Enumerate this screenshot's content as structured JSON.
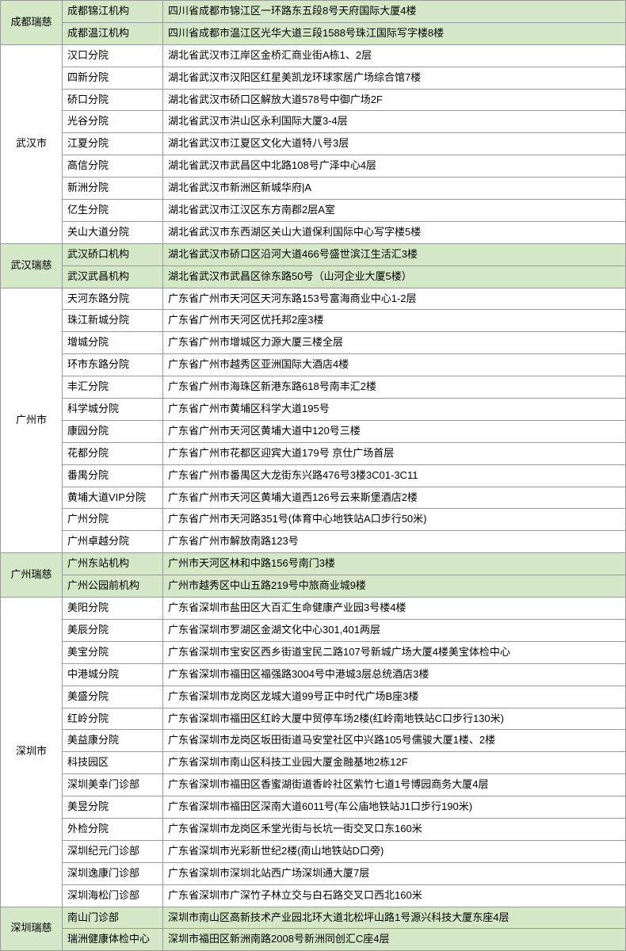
{
  "columns": [
    "city",
    "branch",
    "address"
  ],
  "col_widths": {
    "city": 78,
    "branch": 127
  },
  "colors": {
    "highlight_bg": "#d4e8c8",
    "normal_bg": "#ffffff",
    "border": "#999999",
    "text": "#000000"
  },
  "rows": [
    {
      "city": "成都瑞慈",
      "city_rowspan": 2,
      "branch": "成都锦江机构",
      "address": "四川省成都市锦江区一环路东五段8号天府国际大厦4楼",
      "highlight": true
    },
    {
      "branch": "成都温江机构",
      "address": "四川省成都市温江区光华大道三段1588号珠江国际写字楼8楼",
      "highlight": true
    },
    {
      "city": "武汉市",
      "city_rowspan": 9,
      "branch": "汉口分院",
      "address": "湖北省武汉市江岸区金桥汇商业街A栋1、2层",
      "highlight": false
    },
    {
      "branch": "四新分院",
      "address": "湖北省武汉市汉阳区红星美凯龙环球家居广场综合馆7楼",
      "highlight": false
    },
    {
      "branch": "硚口分院",
      "address": "湖北省武汉市硚口区解放大道578号中御广场2F",
      "highlight": false
    },
    {
      "branch": "光谷分院",
      "address": "湖北省武汉市洪山区永利国际大厦3-4层",
      "highlight": false
    },
    {
      "branch": "江夏分院",
      "address": "湖北省武汉市江夏区文化大道特八号3层",
      "highlight": false
    },
    {
      "branch": "高信分院",
      "address": "湖北省武汉市武昌区中北路108号广泽中心4层",
      "highlight": false
    },
    {
      "branch": "新洲分院",
      "address": "湖北省武汉市新洲区新城华府|A",
      "highlight": false
    },
    {
      "branch": "亿生分院",
      "address": "湖北省武汉市江汉区东方南郡2层A室",
      "highlight": false
    },
    {
      "branch": "关山大道分院",
      "address": "湖北省武汉市东西湖区关山大道保利国际中心写字楼5楼",
      "highlight": false
    },
    {
      "city": "武汉瑞慈",
      "city_rowspan": 2,
      "branch": "武汉硚口机构",
      "address": "湖北省武汉市硚口区沿河大道466号盛世滨江生活汇3楼",
      "highlight": true
    },
    {
      "branch": "武汉武昌机构",
      "address": "湖北省武汉市武昌区徐东路50号（山河企业大厦5楼）",
      "highlight": true
    },
    {
      "city": "广州市",
      "city_rowspan": 12,
      "branch": "天河东路分院",
      "address": "广东省广州市天河区天河东路153号富海商业中心1-2层",
      "highlight": false
    },
    {
      "branch": "珠江新城分院",
      "address": "广东省广州市天河区优托邦2座3楼",
      "highlight": false
    },
    {
      "branch": "增城分院",
      "address": "广东省广州市增城区力源大厦三楼全层",
      "highlight": false
    },
    {
      "branch": "环市东路分院",
      "address": "广东省广州市越秀区亚洲国际大酒店4楼",
      "highlight": false
    },
    {
      "branch": "丰汇分院",
      "address": "广东省广州市海珠区新港东路618号南丰汇2楼",
      "highlight": false
    },
    {
      "branch": "科学城分院",
      "address": "广东省广州市黄埔区科学大道195号",
      "highlight": false
    },
    {
      "branch": "康园分院",
      "address": "广东省广州市天河区黄埔大道中120号三楼",
      "highlight": false
    },
    {
      "branch": "花都分院",
      "address": "广东省广州市花都区迎宾大道179号 京仕广场首层",
      "highlight": false
    },
    {
      "branch": "番禺分院",
      "address": "广东省广州市番禺区大龙街东兴路476号3楼3C01-3C11",
      "highlight": false
    },
    {
      "branch": "黄埔大道VIP分院",
      "address": "广东省广州市天河区黄埔大道西126号云来斯堡酒店2楼",
      "highlight": false
    },
    {
      "branch": "广州分院",
      "address": "广东省广州市天河路351号(体育中心地铁站A口步行50米)",
      "highlight": false
    },
    {
      "branch": "广州卓越分院",
      "address": "广东省广州市解放南路123号",
      "highlight": false
    },
    {
      "city": "广州瑞慈",
      "city_rowspan": 2,
      "branch": "广州东站机构",
      "address": "广州市天河区林和中路156号南门3楼",
      "highlight": true
    },
    {
      "branch": "广州公园前机构",
      "address": "广州市越秀区中山五路219号中旅商业城9楼",
      "highlight": true
    },
    {
      "city": "深圳市",
      "city_rowspan": 14,
      "branch": "美阳分院",
      "address": "广东省深圳市盐田区大百汇生命健康产业园3号楼4楼",
      "highlight": false
    },
    {
      "branch": "美辰分院",
      "address": "广东省深圳市罗湖区金湖文化中心301,401两层",
      "highlight": false
    },
    {
      "branch": "美宝分院",
      "address": "广东省深圳市宝安区西乡街道宝民二路107号新城广场大厦4楼美宝体检中心",
      "highlight": false
    },
    {
      "branch": "中港城分院",
      "address": "广东省深圳市福田区福强路3004号中港城3层总统酒店3楼",
      "highlight": false
    },
    {
      "branch": "美盛分院",
      "address": "广东省深圳市龙岗区龙城大道99号正中时代广场B座3楼",
      "highlight": false
    },
    {
      "branch": "红岭分院",
      "address": "广东省深圳市福田区红岭大厦中贸停车场2楼(红岭南地铁站C口步行130米)",
      "highlight": false
    },
    {
      "branch": "美益康分院",
      "address": "广东省深圳市龙岗区坂田街道马安堂社区中兴路105号儒骏大厦1楼、2楼",
      "highlight": false
    },
    {
      "branch": "科技园区",
      "address": "广东省深圳市南山区科技工业园大厦金融基地2栋12F",
      "highlight": false
    },
    {
      "branch": "深圳美幸门诊部",
      "address": "广东省深圳市福田区香蜜湖街道香岭社区紫竹七道1号博园商务大厦4层",
      "highlight": false
    },
    {
      "branch": "美昱分院",
      "address": "广东省深圳市福田区深南大道6011号(车公庙地铁站J1口步行190米)",
      "highlight": false
    },
    {
      "branch": "外检分院",
      "address": "广东省深圳市龙岗区禾堂光街与长坑一街交叉口东160米",
      "highlight": false
    },
    {
      "branch": "深圳纪元门诊部",
      "address": "广东省深圳市光彩新世纪2楼(南山地铁站D口旁)",
      "highlight": false
    },
    {
      "branch": "深圳逸康门诊部",
      "address": "广东省深圳市深圳北站西广场深圳通大厦7层",
      "highlight": false
    },
    {
      "branch": "深圳海松门诊部",
      "address": "广东省深圳市广深竹子林立交与白石路交叉口西北160米",
      "highlight": false
    },
    {
      "city": "深圳瑞慈",
      "city_rowspan": 2,
      "branch": "南山门诊部",
      "address": "深圳市南山区高新技术产业园北环大道北松坪山路1号源兴科技大厦东座4层",
      "highlight": true
    },
    {
      "branch": "瑞洲健康体检中心",
      "address": "深圳市福田区新洲南路2008号新洲同创汇C座4层",
      "highlight": true
    }
  ]
}
